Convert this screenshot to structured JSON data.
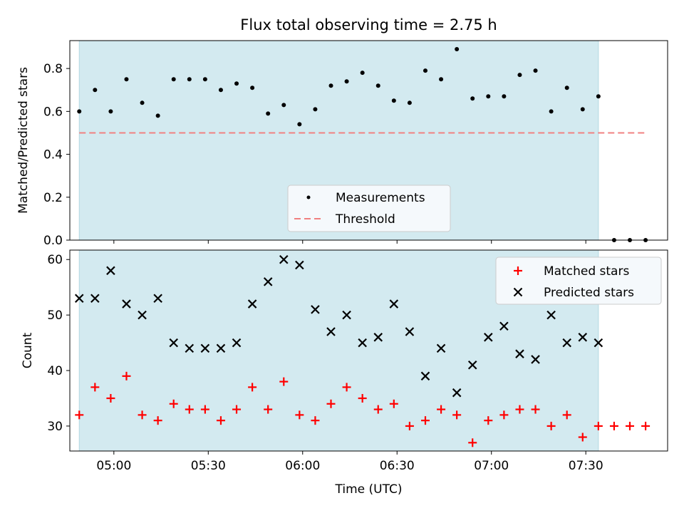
{
  "chart_data": [
    {
      "type": "scatter",
      "title": "Flux total observing time = 2.75 h",
      "xlabel": "",
      "ylabel": "Matched/Predicted stars",
      "x_tick_labels": [
        "05:00",
        "05:30",
        "06:00",
        "06:30",
        "07:00",
        "07:30"
      ],
      "x_range": [
        "04:46",
        "07:56"
      ],
      "ylim": [
        0,
        0.93
      ],
      "y_ticks": [
        0.0,
        0.2,
        0.4,
        0.6,
        0.8
      ],
      "observing_window": [
        "04:49",
        "07:34"
      ],
      "series": [
        {
          "name": "Measurements",
          "marker": "dot",
          "color": "#000000",
          "x": [
            "04:49",
            "04:54",
            "04:59",
            "05:04",
            "05:09",
            "05:14",
            "05:19",
            "05:24",
            "05:29",
            "05:34",
            "05:39",
            "05:44",
            "05:49",
            "05:54",
            "05:59",
            "06:04",
            "06:09",
            "06:14",
            "06:19",
            "06:24",
            "06:29",
            "06:34",
            "06:39",
            "06:44",
            "06:49",
            "06:54",
            "06:59",
            "07:04",
            "07:09",
            "07:14",
            "07:19",
            "07:24",
            "07:29",
            "07:34",
            "07:39",
            "07:44",
            "07:49"
          ],
          "values": [
            0.6,
            0.7,
            0.6,
            0.75,
            0.64,
            0.58,
            0.75,
            0.75,
            0.75,
            0.7,
            0.73,
            0.71,
            0.59,
            0.63,
            0.54,
            0.61,
            0.72,
            0.74,
            0.78,
            0.72,
            0.65,
            0.64,
            0.79,
            0.75,
            0.89,
            0.66,
            0.67,
            0.67,
            0.77,
            0.79,
            0.6,
            0.71,
            0.61,
            0.67,
            0.0,
            0.0,
            0.0
          ]
        },
        {
          "name": "Threshold",
          "style": "dashed",
          "color": "#f08080",
          "x": [
            "04:49",
            "07:49"
          ],
          "values": [
            0.5,
            0.5
          ]
        }
      ],
      "legend": "lower-center"
    },
    {
      "type": "scatter",
      "title": "",
      "xlabel": "Time (UTC)",
      "ylabel": "Count",
      "x_tick_labels": [
        "05:00",
        "05:30",
        "06:00",
        "06:30",
        "07:00",
        "07:30"
      ],
      "x_range": [
        "04:46",
        "07:56"
      ],
      "ylim": [
        25.5,
        61.7
      ],
      "y_ticks": [
        30,
        40,
        50,
        60
      ],
      "observing_window": [
        "04:49",
        "07:34"
      ],
      "series": [
        {
          "name": "Matched stars",
          "marker": "plus",
          "color": "#ff0000",
          "x": [
            "04:49",
            "04:54",
            "04:59",
            "05:04",
            "05:09",
            "05:14",
            "05:19",
            "05:24",
            "05:29",
            "05:34",
            "05:39",
            "05:44",
            "05:49",
            "05:54",
            "05:59",
            "06:04",
            "06:09",
            "06:14",
            "06:19",
            "06:24",
            "06:29",
            "06:34",
            "06:39",
            "06:44",
            "06:49",
            "06:54",
            "06:59",
            "07:04",
            "07:09",
            "07:14",
            "07:19",
            "07:24",
            "07:29",
            "07:34",
            "07:39",
            "07:44",
            "07:49"
          ],
          "values": [
            32,
            37,
            35,
            39,
            32,
            31,
            34,
            33,
            33,
            31,
            33,
            37,
            33,
            38,
            32,
            31,
            34,
            37,
            35,
            33,
            34,
            30,
            31,
            33,
            32,
            27,
            31,
            32,
            33,
            33,
            30,
            32,
            28,
            30,
            30,
            30,
            30
          ]
        },
        {
          "name": "Predicted stars",
          "marker": "x",
          "color": "#000000",
          "x": [
            "04:49",
            "04:54",
            "04:59",
            "05:04",
            "05:09",
            "05:14",
            "05:19",
            "05:24",
            "05:29",
            "05:34",
            "05:39",
            "05:44",
            "05:49",
            "05:54",
            "05:59",
            "06:04",
            "06:09",
            "06:14",
            "06:19",
            "06:24",
            "06:29",
            "06:34",
            "06:39",
            "06:44",
            "06:49",
            "06:54",
            "06:59",
            "07:04",
            "07:09",
            "07:14",
            "07:19",
            "07:24",
            "07:29",
            "07:34"
          ],
          "values": [
            53,
            53,
            58,
            52,
            50,
            53,
            45,
            44,
            44,
            44,
            45,
            52,
            56,
            60,
            59,
            51,
            47,
            50,
            45,
            46,
            52,
            47,
            39,
            44,
            36,
            41,
            46,
            48,
            43,
            42,
            50,
            45,
            46,
            45
          ]
        }
      ],
      "legend": "top-right"
    }
  ],
  "colors": {
    "window_fill": "#d3eaf0",
    "window_edge": "#b3d8e2",
    "legend_fill": "#f5f9fc"
  }
}
